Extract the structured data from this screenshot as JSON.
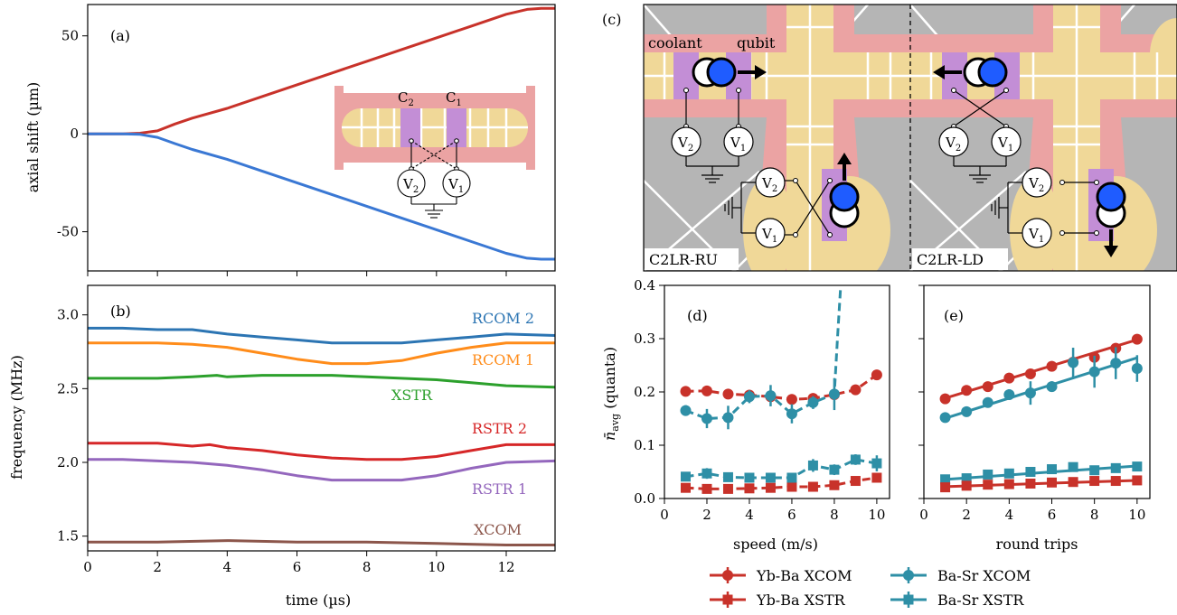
{
  "colors": {
    "red": "#c8322a",
    "blue": "#3a78d4",
    "teal": "#2e8fa6",
    "c_rcom2": "#2c75b3",
    "c_rcom1": "#ff8c1a",
    "c_xstr": "#2ca02c",
    "c_rstr2": "#d62728",
    "c_rstr1": "#9467bd",
    "c_xcom": "#8c564b",
    "trap_pink": "#eba3a3",
    "trap_tan": "#f0d898",
    "trap_purple": "#c38ed6",
    "trap_gray": "#b5b5b5",
    "ion_blue": "#1f5cff"
  },
  "chart_data": [
    {
      "panel": "(a)",
      "type": "line",
      "ylabel": "axial shift (µm)",
      "xlabel": "",
      "xlim": [
        0,
        13.4
      ],
      "ylim": [
        -70,
        66
      ],
      "xticks": [
        0,
        2,
        4,
        6,
        8,
        10,
        12
      ],
      "yticks": [
        -50,
        0,
        50
      ],
      "series": [
        {
          "color": "red",
          "x": [
            0,
            1,
            1.5,
            2,
            2.5,
            3,
            4,
            5,
            6,
            7,
            8,
            9,
            10,
            11,
            12,
            12.6,
            13,
            13.4
          ],
          "y": [
            0,
            0,
            0.3,
            1.5,
            5,
            8,
            13,
            19,
            25,
            31,
            37,
            43,
            49,
            55,
            61,
            63.5,
            64,
            64
          ]
        },
        {
          "color": "blue",
          "x": [
            0,
            1,
            1.5,
            2,
            2.5,
            3,
            4,
            5,
            6,
            7,
            8,
            9,
            10,
            11,
            12,
            12.6,
            13,
            13.4
          ],
          "y": [
            0,
            0,
            -0.3,
            -1.8,
            -5,
            -8,
            -13,
            -19,
            -25,
            -31,
            -37,
            -43,
            -49,
            -55,
            -61,
            -63.5,
            -64,
            -64
          ]
        }
      ],
      "inset": {
        "labels": [
          "C",
          "C"
        ],
        "subs": [
          "2",
          "1"
        ],
        "volts": [
          "V",
          "V"
        ],
        "vsubs": [
          "2",
          "1"
        ]
      }
    },
    {
      "panel": "(b)",
      "type": "line",
      "ylabel": "frequency (MHz)",
      "xlabel": "time  (µs)",
      "xlim": [
        0,
        13.4
      ],
      "ylim": [
        1.4,
        3.2
      ],
      "xticks": [
        0,
        2,
        4,
        6,
        8,
        10,
        12
      ],
      "yticks": [
        1.5,
        2.0,
        2.5,
        3.0
      ],
      "series": [
        {
          "name": "RCOM 2",
          "color": "c_rcom2",
          "x": [
            0,
            1,
            2,
            3,
            4,
            5,
            6,
            7,
            8,
            9,
            10,
            11,
            12,
            13.4
          ],
          "y": [
            2.91,
            2.91,
            2.9,
            2.9,
            2.87,
            2.85,
            2.83,
            2.81,
            2.81,
            2.81,
            2.83,
            2.85,
            2.87,
            2.86
          ]
        },
        {
          "name": "RCOM 1",
          "color": "c_rcom1",
          "x": [
            0,
            1,
            2,
            3,
            4,
            5,
            6,
            7,
            8,
            9,
            10,
            11,
            12,
            13.4
          ],
          "y": [
            2.81,
            2.81,
            2.81,
            2.8,
            2.78,
            2.74,
            2.7,
            2.67,
            2.67,
            2.69,
            2.74,
            2.78,
            2.81,
            2.81
          ]
        },
        {
          "name": "XSTR",
          "color": "c_xstr",
          "x": [
            0,
            1,
            2,
            3,
            3.7,
            4,
            5,
            6,
            7,
            8,
            9,
            10,
            11,
            12,
            13.4
          ],
          "y": [
            2.57,
            2.57,
            2.57,
            2.58,
            2.59,
            2.58,
            2.59,
            2.59,
            2.59,
            2.58,
            2.57,
            2.56,
            2.54,
            2.52,
            2.51
          ]
        },
        {
          "name": "RSTR 2",
          "color": "c_rstr2",
          "x": [
            0,
            1,
            2,
            3,
            3.5,
            4,
            5,
            6,
            7,
            8,
            9,
            10,
            11,
            12,
            13.4
          ],
          "y": [
            2.13,
            2.13,
            2.13,
            2.11,
            2.12,
            2.1,
            2.08,
            2.05,
            2.03,
            2.02,
            2.02,
            2.04,
            2.08,
            2.12,
            2.12
          ]
        },
        {
          "name": "RSTR 1",
          "color": "c_rstr1",
          "x": [
            0,
            1,
            2,
            3,
            4,
            5,
            6,
            7,
            8,
            9,
            10,
            11,
            12,
            13.4
          ],
          "y": [
            2.02,
            2.02,
            2.01,
            2.0,
            1.98,
            1.95,
            1.91,
            1.88,
            1.88,
            1.88,
            1.91,
            1.96,
            2.0,
            2.01
          ]
        },
        {
          "name": "XCOM",
          "color": "c_xcom",
          "x": [
            0,
            2,
            4,
            6,
            8,
            10,
            12,
            13.4
          ],
          "y": [
            1.46,
            1.46,
            1.47,
            1.46,
            1.46,
            1.45,
            1.44,
            1.44
          ]
        }
      ]
    },
    {
      "panel": "(c)",
      "type": "diagram",
      "labels": {
        "coolant": "coolant",
        "qubit": "qubit",
        "left": "C2LR-RU",
        "right": "C2LR-LD"
      }
    },
    {
      "panel": "(d)",
      "type": "line",
      "ylabel": "n̄",
      "ylabel_sub": "avg",
      "ylabel_rest": "(quanta)",
      "xlabel": "speed (m/s)",
      "xlim": [
        0,
        10.6
      ],
      "ylim": [
        0,
        0.4
      ],
      "xticks": [
        0,
        2,
        4,
        6,
        8,
        10
      ],
      "yticks": [
        0.0,
        0.1,
        0.2,
        0.3,
        0.4
      ],
      "series": [
        {
          "name": "Yb-Ba XCOM",
          "color": "red",
          "marker": "circle",
          "dashed": true,
          "x": [
            1,
            2,
            3,
            4,
            5,
            6,
            7,
            8,
            9,
            10
          ],
          "y": [
            0.201,
            0.202,
            0.196,
            0.194,
            0.191,
            0.186,
            0.188,
            0.195,
            0.204,
            0.232
          ],
          "err": [
            0.006,
            0.006,
            0.006,
            0.006,
            0.006,
            0.006,
            0.006,
            0.006,
            0.006,
            0.006
          ]
        },
        {
          "name": "Ba-Sr XCOM",
          "color": "teal",
          "marker": "circle",
          "dashed": true,
          "x": [
            1,
            2,
            3,
            4,
            5,
            6,
            7,
            8
          ],
          "y": [
            0.165,
            0.15,
            0.152,
            0.191,
            0.193,
            0.159,
            0.18,
            0.196
          ],
          "err": [
            0.01,
            0.018,
            0.022,
            0.012,
            0.02,
            0.018,
            0.012,
            0.03
          ],
          "tail": [
            [
              8,
              0.196
            ],
            [
              8.15,
              0.3
            ],
            [
              8.3,
              0.4
            ]
          ]
        },
        {
          "name": "Yb-Ba XSTR",
          "color": "red",
          "marker": "square",
          "dashed": true,
          "x": [
            1,
            2,
            3,
            4,
            5,
            6,
            7,
            8,
            9,
            10
          ],
          "y": [
            0.02,
            0.018,
            0.018,
            0.019,
            0.02,
            0.022,
            0.022,
            0.025,
            0.033,
            0.039
          ],
          "err": [
            0.008,
            0.008,
            0.008,
            0.008,
            0.008,
            0.008,
            0.008,
            0.008,
            0.008,
            0.008
          ]
        },
        {
          "name": "Ba-Sr XSTR",
          "color": "teal",
          "marker": "square",
          "dashed": true,
          "x": [
            1,
            2,
            3,
            4,
            5,
            6,
            7,
            8,
            9,
            10
          ],
          "y": [
            0.041,
            0.047,
            0.04,
            0.039,
            0.039,
            0.039,
            0.062,
            0.054,
            0.073,
            0.066
          ],
          "err": [
            0.008,
            0.01,
            0.008,
            0.008,
            0.008,
            0.008,
            0.012,
            0.01,
            0.01,
            0.015
          ]
        }
      ]
    },
    {
      "panel": "(e)",
      "type": "line",
      "ylabel": "",
      "xlabel": "round trips",
      "xlim": [
        0,
        10.6
      ],
      "ylim": [
        0,
        0.4
      ],
      "xticks": [
        0,
        2,
        4,
        6,
        8,
        10
      ],
      "yticks": [
        0.0,
        0.1,
        0.2,
        0.3,
        0.4
      ],
      "series": [
        {
          "name": "Yb-Ba XCOM",
          "color": "red",
          "marker": "circle",
          "fit": [
            0.176,
            0.0122
          ],
          "x": [
            1,
            2,
            3,
            4,
            5,
            6,
            7,
            8,
            9,
            10
          ],
          "y": [
            0.187,
            0.203,
            0.21,
            0.226,
            0.234,
            0.248,
            0.256,
            0.265,
            0.282,
            0.299
          ],
          "err": [
            0.006,
            0.006,
            0.006,
            0.006,
            0.006,
            0.006,
            0.006,
            0.006,
            0.006,
            0.006
          ]
        },
        {
          "name": "Ba-Sr XCOM",
          "color": "teal",
          "marker": "circle",
          "fit": [
            0.138,
            0.0126
          ],
          "x": [
            1,
            2,
            3,
            4,
            5,
            6,
            7,
            8,
            9,
            10
          ],
          "y": [
            0.152,
            0.163,
            0.18,
            0.195,
            0.198,
            0.21,
            0.255,
            0.238,
            0.254,
            0.244
          ],
          "err": [
            0.006,
            0.006,
            0.006,
            0.01,
            0.022,
            0.01,
            0.028,
            0.03,
            0.03,
            0.025
          ]
        },
        {
          "name": "Ba-Sr XSTR",
          "color": "teal",
          "marker": "square",
          "fit": [
            0.033,
            0.0028
          ],
          "x": [
            1,
            2,
            3,
            4,
            5,
            6,
            7,
            8,
            9,
            10
          ],
          "y": [
            0.036,
            0.038,
            0.045,
            0.047,
            0.05,
            0.055,
            0.059,
            0.053,
            0.057,
            0.06
          ],
          "err": [
            0.006,
            0.006,
            0.006,
            0.006,
            0.006,
            0.006,
            0.006,
            0.006,
            0.006,
            0.006
          ]
        },
        {
          "name": "Yb-Ba XSTR",
          "color": "red",
          "marker": "square",
          "fit": [
            0.021,
            0.0013
          ],
          "x": [
            1,
            2,
            3,
            4,
            5,
            6,
            7,
            8,
            9,
            10
          ],
          "y": [
            0.021,
            0.024,
            0.026,
            0.027,
            0.028,
            0.03,
            0.031,
            0.033,
            0.033,
            0.034
          ],
          "err": [
            0.004,
            0.004,
            0.004,
            0.004,
            0.004,
            0.004,
            0.004,
            0.004,
            0.004,
            0.004
          ]
        }
      ]
    }
  ],
  "legend": [
    {
      "label": "Yb-Ba XCOM",
      "color": "red",
      "marker": "circle"
    },
    {
      "label": "Ba-Sr XCOM",
      "color": "teal",
      "marker": "circle"
    },
    {
      "label": "Yb-Ba XSTR",
      "color": "red",
      "marker": "square"
    },
    {
      "label": "Ba-Sr XSTR",
      "color": "teal",
      "marker": "square"
    }
  ]
}
